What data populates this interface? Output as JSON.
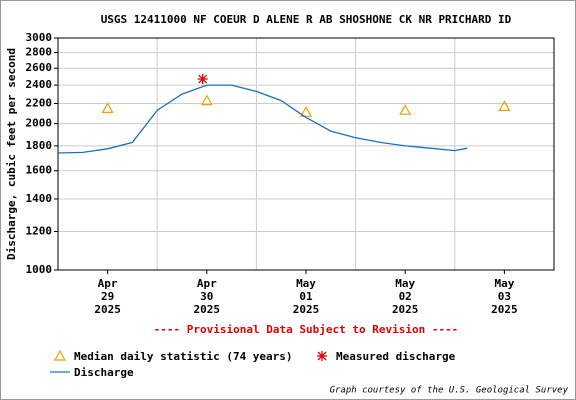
{
  "chart_data": {
    "type": "line",
    "title": "USGS 12411000 NF COEUR D ALENE R AB SHOSHONE CK NR PRICHARD ID",
    "ylabel": "Discharge, cubic feet per second",
    "note": "---- Provisional Data Subject to Revision ----",
    "credit": "Graph courtesy of the U.S. Geological Survey",
    "log_scale": true,
    "grid": true,
    "ylim": [
      1000,
      3000
    ],
    "yticks": [
      1000,
      1200,
      1400,
      1600,
      1800,
      2000,
      2200,
      2400,
      2600,
      2800,
      3000
    ],
    "xlim": [
      "2025-04-29T00:00",
      "2025-05-04T00:00"
    ],
    "xticks": [
      {
        "value": "2025-04-29T12:00",
        "label": [
          "Apr",
          "29",
          "2025"
        ]
      },
      {
        "value": "2025-04-30T12:00",
        "label": [
          "Apr",
          "30",
          "2025"
        ]
      },
      {
        "value": "2025-05-01T12:00",
        "label": [
          "May",
          "01",
          "2025"
        ]
      },
      {
        "value": "2025-05-02T12:00",
        "label": [
          "May",
          "02",
          "2025"
        ]
      },
      {
        "value": "2025-05-03T12:00",
        "label": [
          "May",
          "03",
          "2025"
        ]
      }
    ],
    "xgrid": [
      "2025-04-30T00:00",
      "2025-05-01T00:00",
      "2025-05-02T00:00",
      "2025-05-03T00:00"
    ],
    "series": [
      {
        "name": "Median daily statistic (74 years)",
        "marker": "triangle",
        "color": "#f0a000",
        "x": [
          "2025-04-29T12:00",
          "2025-04-30T12:00",
          "2025-05-01T12:00",
          "2025-05-02T12:00",
          "2025-05-03T12:00"
        ],
        "values": [
          2150,
          2230,
          2110,
          2130,
          2170
        ]
      },
      {
        "name": "Measured discharge",
        "marker": "asterisk",
        "color": "#e00000",
        "x": [
          "2025-04-30T11:00"
        ],
        "values": [
          2470
        ]
      },
      {
        "name": "Discharge",
        "marker": "line",
        "color": "#1a70c0",
        "x": [
          "2025-04-29T00:00",
          "2025-04-29T06:00",
          "2025-04-29T12:00",
          "2025-04-29T18:00",
          "2025-04-30T00:00",
          "2025-04-30T06:00",
          "2025-04-30T12:00",
          "2025-04-30T18:00",
          "2025-05-01T00:00",
          "2025-05-01T06:00",
          "2025-05-01T12:00",
          "2025-05-01T18:00",
          "2025-05-02T00:00",
          "2025-05-02T06:00",
          "2025-05-02T12:00",
          "2025-05-02T18:00",
          "2025-05-03T00:00",
          "2025-05-03T03:00"
        ],
        "values": [
          1740,
          1745,
          1775,
          1830,
          2130,
          2300,
          2400,
          2400,
          2330,
          2230,
          2060,
          1930,
          1870,
          1830,
          1800,
          1780,
          1760,
          1780
        ]
      }
    ]
  }
}
